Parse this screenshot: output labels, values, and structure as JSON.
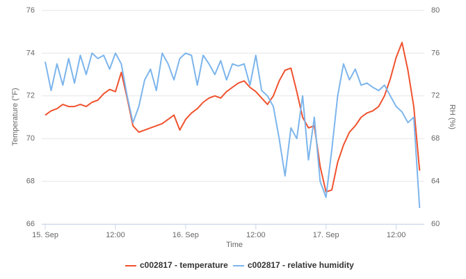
{
  "chart_data": {
    "type": "line",
    "x_label": "Time",
    "y_label": "Temperature (°F)",
    "y2_label": "RH (%)",
    "x": [
      0,
      1,
      2,
      3,
      4,
      5,
      6,
      7,
      8,
      9,
      10,
      11,
      12,
      13,
      14,
      15,
      16,
      17,
      18,
      19,
      20,
      21,
      22,
      23,
      24,
      25,
      26,
      27,
      28,
      29,
      30,
      31,
      32,
      33,
      34,
      35,
      36,
      37,
      38,
      39,
      40,
      41,
      42,
      43,
      44,
      45,
      46,
      47,
      48,
      49,
      50,
      51,
      52,
      53,
      54,
      55,
      56,
      57,
      58,
      59,
      60,
      61,
      62,
      63,
      64
    ],
    "xlim": [
      -0.6,
      64.8
    ],
    "xticks": [
      {
        "value": 0,
        "label": "15. Sep"
      },
      {
        "value": 12,
        "label": "12:00"
      },
      {
        "value": 24,
        "label": "16. Sep"
      },
      {
        "value": 36,
        "label": "12:00"
      },
      {
        "value": 48,
        "label": "17. Sep"
      },
      {
        "value": 60,
        "label": "12:00"
      }
    ],
    "ylim": [
      66,
      76
    ],
    "yticks": [
      66,
      68,
      70,
      72,
      74,
      76
    ],
    "y2lim": [
      60,
      80
    ],
    "y2ticks": [
      60,
      64,
      68,
      72,
      76,
      80
    ],
    "grid": true,
    "legend": "bottom",
    "series": [
      {
        "name": "c002817 - temperature",
        "color": "#f0522e",
        "values": [
          71.1,
          71.3,
          71.4,
          71.6,
          71.5,
          71.5,
          71.6,
          71.5,
          71.7,
          71.8,
          72.1,
          72.3,
          72.2,
          73.1,
          71.9,
          70.6,
          70.3,
          70.4,
          70.5,
          70.6,
          70.7,
          70.9,
          71.1,
          70.4,
          70.9,
          71.2,
          71.4,
          71.7,
          71.9,
          72.0,
          71.9,
          72.2,
          72.4,
          72.6,
          72.7,
          72.4,
          72.2,
          71.9,
          71.6,
          72.0,
          72.7,
          73.2,
          73.3,
          72.2,
          71.0,
          70.5,
          70.6,
          68.7,
          67.5,
          67.6,
          68.9,
          69.7,
          70.3,
          70.6,
          71.0,
          71.2,
          71.3,
          71.5,
          72.0,
          72.8,
          73.8,
          74.5,
          73.2,
          71.5,
          68.5
        ]
      },
      {
        "name": "c002817 - relative humidity",
        "color": "#7cb5ec",
        "axis": "y2",
        "values": [
          75.2,
          72.5,
          75,
          73,
          75.5,
          73.2,
          75.8,
          74,
          76,
          75.5,
          75.8,
          74.5,
          76,
          75,
          72,
          69.5,
          71,
          73.5,
          74.5,
          72.5,
          76,
          75,
          73.5,
          75.5,
          76,
          75.8,
          73,
          75.8,
          75,
          74,
          75.3,
          73.5,
          75,
          74.8,
          75,
          73,
          75.8,
          72.5,
          72,
          71,
          68,
          64.5,
          69,
          68,
          72,
          66,
          70,
          64,
          62.5,
          67,
          72,
          75,
          73.5,
          74.5,
          73,
          73.2,
          72.8,
          72.5,
          73,
          72,
          71,
          70.5,
          69.5,
          70,
          61.5
        ]
      }
    ]
  }
}
